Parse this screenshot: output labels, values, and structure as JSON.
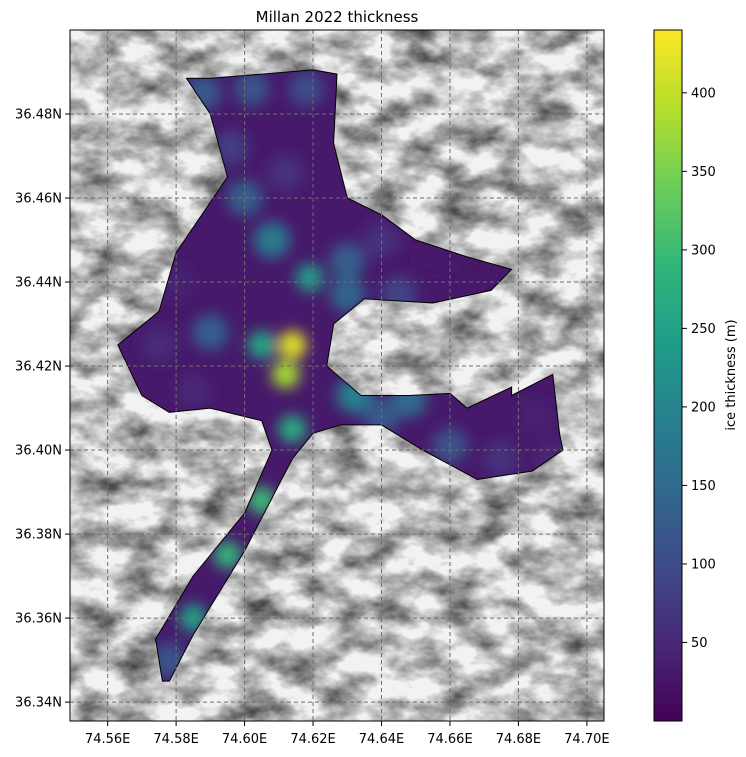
{
  "chart_data": {
    "type": "heatmap",
    "title": "Millan 2022 thickness",
    "xlabel": "",
    "ylabel": "",
    "xlim": [
      74.549,
      74.705
    ],
    "ylim": [
      36.3355,
      36.5
    ],
    "grid": true,
    "x_ticks": [
      {
        "value": 74.56,
        "label": "74.56E"
      },
      {
        "value": 74.58,
        "label": "74.58E"
      },
      {
        "value": 74.6,
        "label": "74.60E"
      },
      {
        "value": 74.62,
        "label": "74.62E"
      },
      {
        "value": 74.64,
        "label": "74.64E"
      },
      {
        "value": 74.66,
        "label": "74.66E"
      },
      {
        "value": 74.68,
        "label": "74.68E"
      },
      {
        "value": 74.7,
        "label": "74.70E"
      }
    ],
    "y_ticks": [
      {
        "value": 36.34,
        "label": "36.34N"
      },
      {
        "value": 36.36,
        "label": "36.36N"
      },
      {
        "value": 36.38,
        "label": "36.38N"
      },
      {
        "value": 36.4,
        "label": "36.40N"
      },
      {
        "value": 36.42,
        "label": "36.42N"
      },
      {
        "value": 36.44,
        "label": "36.44N"
      },
      {
        "value": 36.46,
        "label": "36.46N"
      },
      {
        "value": 36.48,
        "label": "36.48N"
      }
    ],
    "colorbar": {
      "label": "ice thickness (m)",
      "colormap": "viridis",
      "range": [
        0,
        440
      ],
      "ticks": [
        {
          "value": 50,
          "label": "50"
        },
        {
          "value": 100,
          "label": "100"
        },
        {
          "value": 150,
          "label": "150"
        },
        {
          "value": 200,
          "label": "200"
        },
        {
          "value": 250,
          "label": "250"
        },
        {
          "value": 300,
          "label": "300"
        },
        {
          "value": 350,
          "label": "350"
        },
        {
          "value": 400,
          "label": "400"
        }
      ]
    },
    "glacier_outline": [
      [
        74.583,
        36.4885
      ],
      [
        74.59,
        36.4885
      ],
      [
        74.605,
        36.4895
      ],
      [
        74.62,
        36.4905
      ],
      [
        74.627,
        36.4895
      ],
      [
        74.626,
        36.473
      ],
      [
        74.63,
        36.46
      ],
      [
        74.64,
        36.456
      ],
      [
        74.65,
        36.45
      ],
      [
        74.665,
        36.446
      ],
      [
        74.678,
        36.443
      ],
      [
        74.672,
        36.438
      ],
      [
        74.655,
        36.435
      ],
      [
        74.635,
        36.436
      ],
      [
        74.626,
        36.43
      ],
      [
        74.624,
        36.42
      ],
      [
        74.634,
        36.413
      ],
      [
        74.648,
        36.413
      ],
      [
        74.66,
        36.4135
      ],
      [
        74.665,
        36.41
      ],
      [
        74.678,
        36.415
      ],
      [
        74.678,
        36.413
      ],
      [
        74.69,
        36.418
      ],
      [
        74.692,
        36.404
      ],
      [
        74.693,
        36.4
      ],
      [
        74.684,
        36.395
      ],
      [
        74.668,
        36.393
      ],
      [
        74.652,
        36.4
      ],
      [
        74.64,
        36.406
      ],
      [
        74.628,
        36.406
      ],
      [
        74.62,
        36.404
      ],
      [
        74.614,
        36.398
      ],
      [
        74.6,
        36.376
      ],
      [
        74.585,
        36.356
      ],
      [
        74.578,
        36.345
      ],
      [
        74.576,
        36.345
      ],
      [
        74.574,
        36.355
      ],
      [
        74.585,
        36.37
      ],
      [
        74.6,
        36.385
      ],
      [
        74.608,
        36.4
      ],
      [
        74.605,
        36.407
      ],
      [
        74.59,
        36.41
      ],
      [
        74.578,
        36.409
      ],
      [
        74.57,
        36.413
      ],
      [
        74.563,
        36.425
      ],
      [
        74.575,
        36.433
      ],
      [
        74.58,
        36.447
      ],
      [
        74.595,
        36.465
      ],
      [
        74.59,
        36.48
      ]
    ],
    "thickness_samples": [
      {
        "lon": 74.588,
        "lat": 36.485,
        "value": 120
      },
      {
        "lon": 74.602,
        "lat": 36.486,
        "value": 110
      },
      {
        "lon": 74.618,
        "lat": 36.486,
        "value": 100
      },
      {
        "lon": 74.596,
        "lat": 36.472,
        "value": 80
      },
      {
        "lon": 74.612,
        "lat": 36.466,
        "value": 60
      },
      {
        "lon": 74.6,
        "lat": 36.46,
        "value": 130
      },
      {
        "lon": 74.608,
        "lat": 36.45,
        "value": 180
      },
      {
        "lon": 74.619,
        "lat": 36.441,
        "value": 240
      },
      {
        "lon": 74.614,
        "lat": 36.425,
        "value": 420
      },
      {
        "lon": 74.612,
        "lat": 36.418,
        "value": 380
      },
      {
        "lon": 74.605,
        "lat": 36.425,
        "value": 260
      },
      {
        "lon": 74.59,
        "lat": 36.428,
        "value": 130
      },
      {
        "lon": 74.575,
        "lat": 36.425,
        "value": 50
      },
      {
        "lon": 74.58,
        "lat": 36.44,
        "value": 40
      },
      {
        "lon": 74.585,
        "lat": 36.414,
        "value": 45
      },
      {
        "lon": 74.614,
        "lat": 36.405,
        "value": 270
      },
      {
        "lon": 74.605,
        "lat": 36.388,
        "value": 300
      },
      {
        "lon": 74.595,
        "lat": 36.375,
        "value": 290
      },
      {
        "lon": 74.585,
        "lat": 36.36,
        "value": 250
      },
      {
        "lon": 74.578,
        "lat": 36.35,
        "value": 110
      },
      {
        "lon": 74.63,
        "lat": 36.445,
        "value": 130
      },
      {
        "lon": 74.64,
        "lat": 36.45,
        "value": 60
      },
      {
        "lon": 74.655,
        "lat": 36.446,
        "value": 30
      },
      {
        "lon": 74.668,
        "lat": 36.443,
        "value": 25
      },
      {
        "lon": 74.63,
        "lat": 36.437,
        "value": 140
      },
      {
        "lon": 74.645,
        "lat": 36.437,
        "value": 90
      },
      {
        "lon": 74.632,
        "lat": 36.413,
        "value": 190
      },
      {
        "lon": 74.648,
        "lat": 36.412,
        "value": 150
      },
      {
        "lon": 74.66,
        "lat": 36.401,
        "value": 110
      },
      {
        "lon": 74.675,
        "lat": 36.398,
        "value": 60
      },
      {
        "lon": 74.685,
        "lat": 36.408,
        "value": 40
      },
      {
        "lon": 74.69,
        "lat": 36.398,
        "value": 45
      },
      {
        "lon": 74.64,
        "lat": 36.408,
        "value": 120
      }
    ]
  }
}
